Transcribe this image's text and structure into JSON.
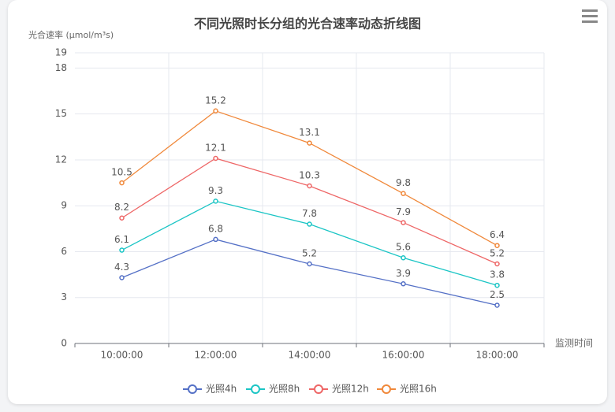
{
  "chart_data": {
    "type": "line",
    "title": "不同光照时长分组的光合速率动态折线图",
    "y_label": "光合速率 (μmol/m³s)",
    "x_label": "监测时间",
    "categories": [
      "10:00:00",
      "12:00:00",
      "14:00:00",
      "16:00:00",
      "18:00:00"
    ],
    "series": [
      {
        "name": "光照4h",
        "color": "#5470c6",
        "values": [
          4.3,
          6.8,
          5.2,
          3.9,
          2.5
        ]
      },
      {
        "name": "光照8h",
        "color": "#1bc5c5",
        "values": [
          6.1,
          9.3,
          7.8,
          5.6,
          3.8
        ]
      },
      {
        "name": "光照12h",
        "color": "#ee6666",
        "values": [
          8.2,
          12.1,
          10.3,
          7.9,
          5.2
        ]
      },
      {
        "name": "光照16h",
        "color": "#f0883a",
        "values": [
          10.5,
          15.2,
          13.1,
          9.8,
          6.4
        ]
      }
    ],
    "ylim": [
      0,
      19
    ],
    "yticks": [
      0,
      3,
      6,
      9,
      12,
      15,
      18,
      19
    ],
    "grid": true
  }
}
